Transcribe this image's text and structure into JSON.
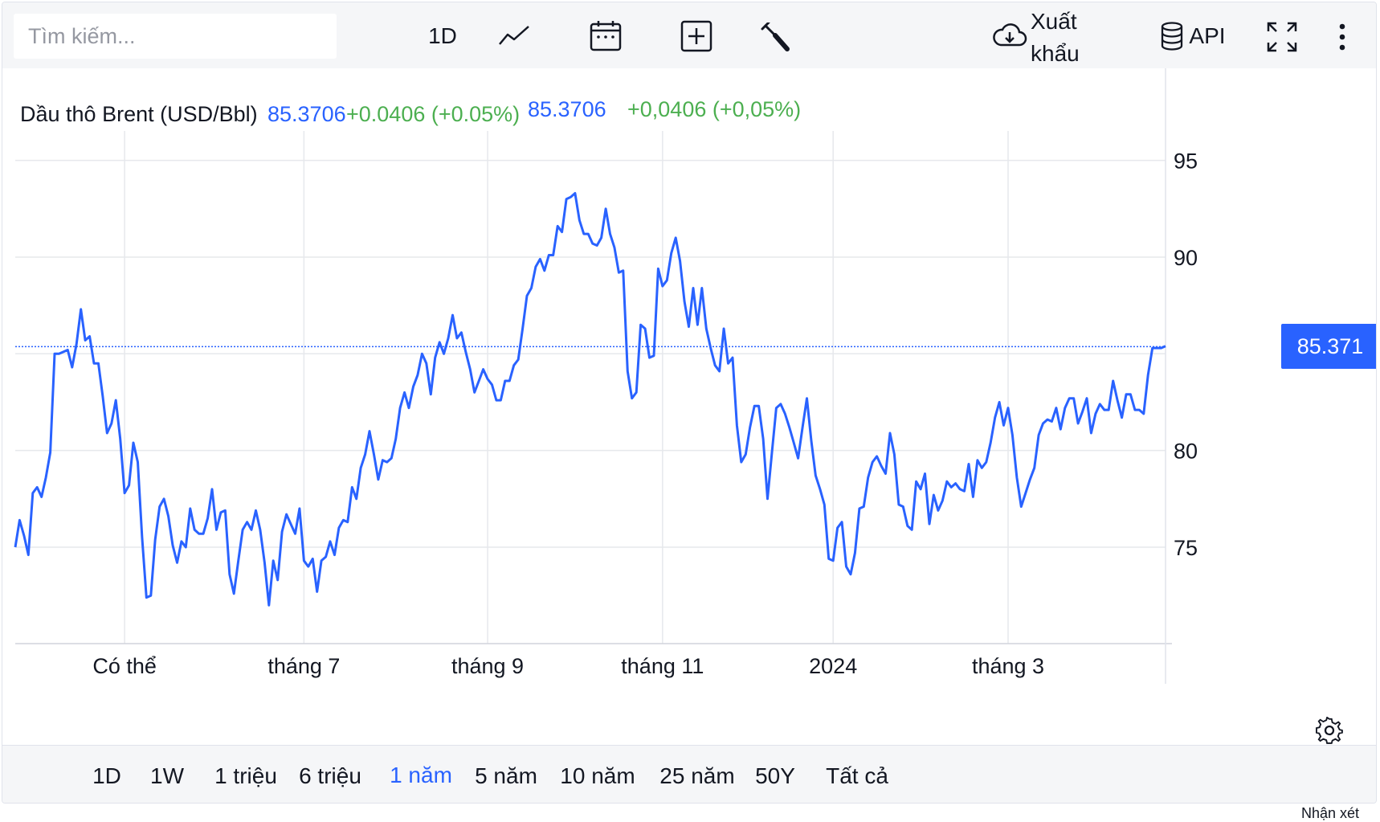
{
  "toolbar": {
    "search_placeholder": "Tìm kiếm...",
    "interval_label": "1D",
    "export_label": "Xuất khẩu",
    "api_label": "API",
    "icons": [
      "line-chart-icon",
      "calendar-icon",
      "add-indicator-icon",
      "wrench-icon",
      "cloud-download-icon",
      "database-icon",
      "fullscreen-icon",
      "more-vertical-icon"
    ]
  },
  "legend": {
    "symbol": "Dầu thô Brent (USD/Bbl)",
    "value": "85.3706",
    "change": "+0.0406 (+0.05%)",
    "value_dup": "85.3706",
    "change_dup": "+0,0406 (+0,05%)"
  },
  "price_tag": "85.371",
  "colors": {
    "line": "#2962ff",
    "positive": "#4caf50",
    "price_tag_bg": "#2962ff"
  },
  "chart_data": {
    "type": "line",
    "title": "",
    "xlabel": "",
    "ylabel": "",
    "ylim": [
      70,
      98
    ],
    "last_value": 85.3706,
    "y_ticks": [
      75,
      80,
      85,
      90,
      95
    ],
    "y_tick_labels": [
      "75",
      "80",
      "",
      "90",
      "95"
    ],
    "x_ticks": [
      {
        "label": "Có thể",
        "index": 25
      },
      {
        "label": "tháng 7",
        "index": 66
      },
      {
        "label": "tháng 9",
        "index": 108
      },
      {
        "label": "tháng 11",
        "index": 148
      },
      {
        "label": "2024",
        "index": 187
      },
      {
        "label": "tháng 3",
        "index": 227
      }
    ],
    "grid": true,
    "series": [
      {
        "values": [
          75.0,
          76.4,
          75.6,
          74.6,
          77.8,
          78.1,
          77.6,
          78.6,
          79.9,
          85.0,
          85.0,
          85.1,
          85.2,
          84.3,
          85.5,
          87.3,
          85.7,
          85.9,
          84.5,
          84.5,
          82.8,
          80.9,
          81.4,
          82.6,
          80.6,
          77.8,
          78.2,
          80.4,
          79.4,
          75.5,
          72.4,
          72.5,
          75.4,
          77.1,
          77.5,
          76.6,
          75.1,
          74.2,
          75.3,
          75.0,
          77.0,
          75.9,
          75.7,
          75.7,
          76.5,
          78.0,
          75.9,
          76.8,
          76.9,
          73.6,
          72.6,
          74.3,
          75.9,
          76.3,
          75.9,
          76.9,
          75.9,
          74.2,
          72.0,
          74.3,
          73.3,
          75.8,
          76.7,
          76.2,
          75.7,
          77.0,
          74.3,
          74.0,
          74.4,
          72.7,
          74.3,
          74.5,
          75.3,
          74.6,
          76.0,
          76.4,
          76.3,
          78.1,
          77.5,
          79.1,
          79.8,
          81.0,
          79.8,
          78.5,
          79.5,
          79.4,
          79.6,
          80.6,
          82.2,
          83.0,
          82.2,
          83.3,
          83.9,
          85.0,
          84.5,
          82.9,
          84.8,
          85.6,
          85.0,
          85.8,
          87.0,
          85.8,
          86.1,
          85.1,
          84.2,
          83.0,
          83.6,
          84.2,
          83.7,
          83.4,
          82.6,
          82.6,
          83.6,
          83.6,
          84.4,
          84.7,
          86.3,
          88.0,
          88.4,
          89.5,
          89.9,
          89.3,
          90.1,
          90.1,
          91.6,
          91.3,
          93.0,
          93.1,
          93.3,
          91.9,
          91.2,
          91.2,
          90.7,
          90.6,
          91.0,
          92.5,
          91.2,
          90.5,
          89.2,
          89.3,
          84.1,
          82.7,
          83.0,
          86.5,
          86.3,
          84.8,
          84.9,
          89.4,
          88.5,
          88.8,
          90.2,
          91.0,
          89.8,
          87.7,
          86.4,
          88.4,
          86.5,
          88.4,
          86.3,
          85.3,
          84.4,
          84.1,
          86.3,
          84.5,
          84.8,
          81.3,
          79.4,
          79.8,
          81.2,
          82.3,
          82.3,
          80.6,
          77.5,
          79.9,
          82.2,
          82.4,
          81.9,
          81.2,
          80.4,
          79.6,
          81.2,
          82.7,
          80.5,
          78.7,
          78.0,
          77.2,
          74.4,
          74.3,
          76.0,
          76.3,
          74.0,
          73.6,
          74.7,
          77.0,
          77.1,
          78.6,
          79.4,
          79.7,
          79.2,
          78.8,
          80.9,
          79.8,
          77.2,
          77.1,
          76.1,
          75.9,
          78.4,
          78.0,
          78.8,
          76.2,
          77.7,
          76.9,
          77.4,
          78.4,
          78.1,
          78.3,
          78.0,
          77.9,
          79.3,
          77.6,
          79.5,
          79.1,
          79.4,
          80.4,
          81.7,
          82.5,
          81.3,
          82.2,
          80.8,
          78.6,
          77.1,
          77.8,
          78.5,
          79.1,
          80.8,
          81.4,
          81.6,
          81.5,
          82.2,
          81.1,
          82.2,
          82.7,
          82.7,
          81.4,
          82.0,
          82.7,
          80.9,
          81.9,
          82.4,
          82.1,
          82.1,
          83.6,
          82.6,
          81.7,
          82.9,
          82.9,
          82.1,
          82.1,
          81.9,
          83.9,
          85.3,
          85.3,
          85.3,
          85.4
        ]
      }
    ]
  },
  "ranges": {
    "items": [
      "1D",
      "1W",
      "1 triệu",
      "6 triệu",
      "1 năm",
      "5 năm",
      "10 năm",
      "25 năm",
      "50Y",
      "Tất cả"
    ],
    "active": "1 năm"
  },
  "footer_note": "Nhận xét"
}
